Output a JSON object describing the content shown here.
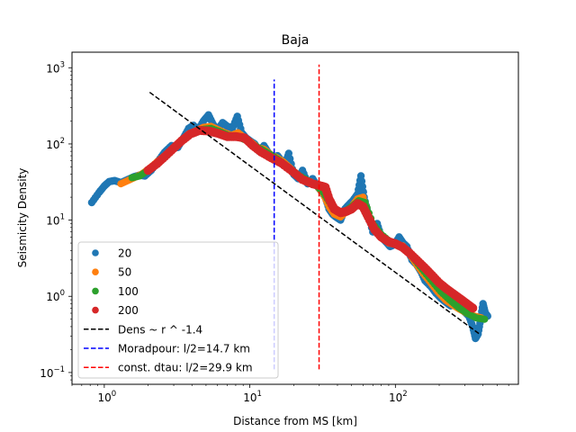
{
  "chart_data": {
    "type": "scatter",
    "title": "Baja",
    "xlabel": "Distance from MS [km]",
    "ylabel": "Seismicity Density",
    "xscale": "log",
    "yscale": "log",
    "xlim": [
      0.6,
      700
    ],
    "ylim": [
      0.07,
      1600
    ],
    "x_ticks": [
      {
        "value": 1,
        "base": "10",
        "exp": "0"
      },
      {
        "value": 10,
        "base": "10",
        "exp": "1"
      },
      {
        "value": 100,
        "base": "10",
        "exp": "2"
      }
    ],
    "y_ticks": [
      {
        "value": 0.1,
        "base": "10",
        "exp": "−1"
      },
      {
        "value": 1,
        "base": "10",
        "exp": "0"
      },
      {
        "value": 10,
        "base": "10",
        "exp": "1"
      },
      {
        "value": 100,
        "base": "10",
        "exp": "2"
      },
      {
        "value": 1000,
        "base": "10",
        "exp": "3"
      }
    ],
    "grid": false,
    "legend_position": "lower-left",
    "series": [
      {
        "name": "20",
        "color": "#1f77b4",
        "marker_size": 4.2,
        "points": [
          [
            0.82,
            17
          ],
          [
            0.92,
            23
          ],
          [
            1.0,
            28
          ],
          [
            1.08,
            32
          ],
          [
            1.18,
            33
          ],
          [
            1.3,
            31
          ],
          [
            1.45,
            34
          ],
          [
            1.6,
            37
          ],
          [
            1.75,
            39
          ],
          [
            1.9,
            38
          ],
          [
            2.1,
            45
          ],
          [
            2.35,
            60
          ],
          [
            2.6,
            78
          ],
          [
            2.9,
            95
          ],
          [
            3.2,
            90
          ],
          [
            3.5,
            120
          ],
          [
            3.8,
            160
          ],
          [
            4.1,
            175
          ],
          [
            4.4,
            150
          ],
          [
            4.8,
            200
          ],
          [
            5.2,
            240
          ],
          [
            5.6,
            180
          ],
          [
            6.0,
            150
          ],
          [
            6.5,
            190
          ],
          [
            7.0,
            170
          ],
          [
            7.6,
            160
          ],
          [
            8.2,
            230
          ],
          [
            8.8,
            140
          ],
          [
            9.4,
            120
          ],
          [
            10.0,
            110
          ],
          [
            10.8,
            100
          ],
          [
            11.6,
            80
          ],
          [
            12.5,
            95
          ],
          [
            13.5,
            75
          ],
          [
            14.5,
            65
          ],
          [
            15.5,
            70
          ],
          [
            16.5,
            60
          ],
          [
            17.5,
            55
          ],
          [
            18.5,
            75
          ],
          [
            20,
            40
          ],
          [
            21.5,
            35
          ],
          [
            23,
            45
          ],
          [
            25,
            30
          ],
          [
            27,
            35
          ],
          [
            29,
            28
          ],
          [
            31,
            24
          ],
          [
            33,
            20
          ],
          [
            35,
            14
          ],
          [
            37,
            12
          ],
          [
            39,
            11
          ],
          [
            42,
            10
          ],
          [
            45,
            14
          ],
          [
            48,
            16
          ],
          [
            51,
            18
          ],
          [
            55,
            22
          ],
          [
            58,
            38
          ],
          [
            61,
            20
          ],
          [
            65,
            12
          ],
          [
            70,
            7
          ],
          [
            75,
            9
          ],
          [
            80,
            6
          ],
          [
            86,
            5.2
          ],
          [
            92,
            4.5
          ],
          [
            99,
            4.8
          ],
          [
            106,
            6
          ],
          [
            113,
            5
          ],
          [
            120,
            4.5
          ],
          [
            130,
            3
          ],
          [
            140,
            2.6
          ],
          [
            150,
            2.1
          ],
          [
            160,
            1.6
          ],
          [
            175,
            1.35
          ],
          [
            190,
            1.1
          ],
          [
            205,
            0.95
          ],
          [
            220,
            0.85
          ],
          [
            240,
            0.75
          ],
          [
            260,
            0.8
          ],
          [
            280,
            0.7
          ],
          [
            300,
            0.62
          ],
          [
            320,
            0.55
          ],
          [
            340,
            0.4
          ],
          [
            355,
            0.28
          ],
          [
            370,
            0.32
          ],
          [
            385,
            0.5
          ],
          [
            400,
            0.8
          ],
          [
            415,
            0.6
          ],
          [
            430,
            0.55
          ]
        ]
      },
      {
        "name": "50",
        "color": "#ff7f0e",
        "marker_size": 4.0,
        "points": [
          [
            1.3,
            30
          ],
          [
            1.45,
            33
          ],
          [
            1.6,
            36
          ],
          [
            1.8,
            40
          ],
          [
            2.0,
            46
          ],
          [
            2.3,
            58
          ],
          [
            2.6,
            70
          ],
          [
            3.0,
            88
          ],
          [
            3.4,
            110
          ],
          [
            3.8,
            135
          ],
          [
            4.3,
            150
          ],
          [
            4.8,
            165
          ],
          [
            5.4,
            170
          ],
          [
            6.0,
            155
          ],
          [
            6.7,
            140
          ],
          [
            7.5,
            130
          ],
          [
            8.3,
            140
          ],
          [
            9.2,
            120
          ],
          [
            10.2,
            105
          ],
          [
            11.3,
            90
          ],
          [
            12.5,
            85
          ],
          [
            14,
            72
          ],
          [
            15.5,
            65
          ],
          [
            17,
            58
          ],
          [
            19,
            48
          ],
          [
            21,
            40
          ],
          [
            23.5,
            34
          ],
          [
            26,
            32
          ],
          [
            29,
            28
          ],
          [
            32,
            22
          ],
          [
            35,
            15
          ],
          [
            38,
            12
          ],
          [
            42,
            11
          ],
          [
            46,
            13
          ],
          [
            50,
            15
          ],
          [
            55,
            19
          ],
          [
            60,
            20
          ],
          [
            65,
            12
          ],
          [
            72,
            7.5
          ],
          [
            80,
            6
          ],
          [
            90,
            5
          ],
          [
            100,
            4.8
          ],
          [
            112,
            4.6
          ],
          [
            125,
            3.6
          ],
          [
            140,
            2.6
          ],
          [
            155,
            2.0
          ],
          [
            175,
            1.5
          ],
          [
            195,
            1.15
          ],
          [
            220,
            0.9
          ],
          [
            245,
            0.78
          ],
          [
            275,
            0.68
          ],
          [
            310,
            0.6
          ],
          [
            350,
            0.55
          ],
          [
            390,
            0.52
          ]
        ]
      },
      {
        "name": "100",
        "color": "#2ca02c",
        "marker_size": 4.0,
        "points": [
          [
            1.55,
            36
          ],
          [
            1.75,
            38
          ],
          [
            2.0,
            45
          ],
          [
            2.3,
            56
          ],
          [
            2.7,
            72
          ],
          [
            3.1,
            92
          ],
          [
            3.6,
            120
          ],
          [
            4.1,
            140
          ],
          [
            4.7,
            155
          ],
          [
            5.4,
            160
          ],
          [
            6.2,
            145
          ],
          [
            7.1,
            130
          ],
          [
            8.2,
            125
          ],
          [
            9.4,
            112
          ],
          [
            10.8,
            95
          ],
          [
            12.4,
            82
          ],
          [
            14.3,
            70
          ],
          [
            16.5,
            58
          ],
          [
            19,
            47
          ],
          [
            22,
            38
          ],
          [
            25,
            33
          ],
          [
            28.5,
            29
          ],
          [
            32,
            23
          ],
          [
            36,
            16
          ],
          [
            40,
            13
          ],
          [
            45,
            13
          ],
          [
            50,
            15
          ],
          [
            56,
            18
          ],
          [
            62,
            17
          ],
          [
            70,
            9
          ],
          [
            80,
            6.5
          ],
          [
            92,
            5.2
          ],
          [
            105,
            4.8
          ],
          [
            120,
            4.0
          ],
          [
            138,
            2.9
          ],
          [
            158,
            2.1
          ],
          [
            180,
            1.55
          ],
          [
            205,
            1.15
          ],
          [
            235,
            0.9
          ],
          [
            270,
            0.72
          ],
          [
            310,
            0.6
          ],
          [
            360,
            0.52
          ],
          [
            410,
            0.5
          ]
        ]
      },
      {
        "name": "200",
        "color": "#d62728",
        "marker_size": 5.0,
        "points": [
          [
            2.0,
            45
          ],
          [
            2.3,
            55
          ],
          [
            2.6,
            68
          ],
          [
            3.0,
            88
          ],
          [
            3.4,
            110
          ],
          [
            3.9,
            135
          ],
          [
            4.5,
            150
          ],
          [
            5.2,
            148
          ],
          [
            6.0,
            138
          ],
          [
            7.0,
            125
          ],
          [
            8.0,
            125
          ],
          [
            9.2,
            120
          ],
          [
            10.5,
            95
          ],
          [
            12,
            78
          ],
          [
            14,
            66
          ],
          [
            16.5,
            56
          ],
          [
            19.5,
            44
          ],
          [
            23,
            34
          ],
          [
            27,
            30
          ],
          [
            31,
            28
          ],
          [
            33,
            27
          ],
          [
            35,
            19
          ],
          [
            38,
            14
          ],
          [
            42,
            12.5
          ],
          [
            46,
            13
          ],
          [
            50,
            14
          ],
          [
            55,
            16.5
          ],
          [
            60,
            15
          ],
          [
            65,
            11
          ],
          [
            72,
            7.5
          ],
          [
            80,
            6
          ],
          [
            90,
            5.2
          ],
          [
            100,
            4.9
          ],
          [
            112,
            4.4
          ],
          [
            125,
            3.7
          ],
          [
            140,
            3.0
          ],
          [
            158,
            2.4
          ],
          [
            178,
            1.9
          ],
          [
            200,
            1.5
          ],
          [
            225,
            1.25
          ],
          [
            255,
            1.05
          ],
          [
            285,
            0.9
          ],
          [
            315,
            0.78
          ],
          [
            340,
            0.7
          ]
        ]
      }
    ],
    "lines": [
      {
        "name": "Dens ~ r ^ -1.4",
        "color": "#000000",
        "kind": "powerlaw",
        "x_range": [
          2.05,
          375
        ],
        "amplitude": 1300,
        "exponent": -1.4
      },
      {
        "name": "Moradpour: l/2=14.7 km",
        "color": "#0000ff",
        "kind": "vline",
        "x": 14.7,
        "y_range": [
          0.11,
          700
        ]
      },
      {
        "name": "const. dtau: l/2=29.9 km",
        "color": "#ff0000",
        "kind": "vline",
        "x": 29.9,
        "y_range": [
          0.11,
          1100
        ]
      }
    ]
  }
}
